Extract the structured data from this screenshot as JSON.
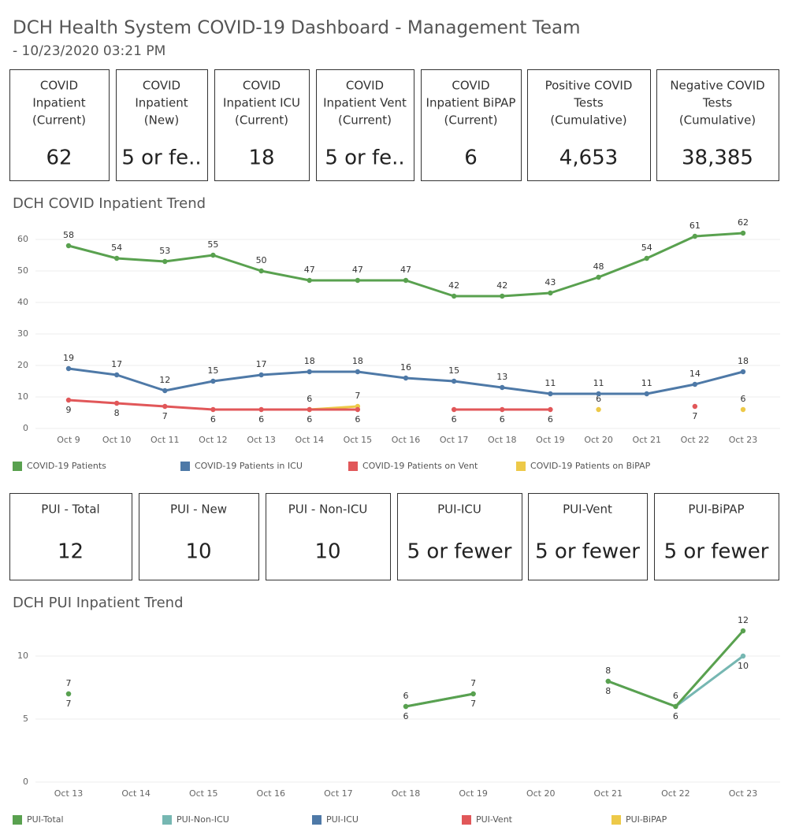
{
  "header": {
    "title": "DCH Health System COVID-19 Dashboard - Management Team",
    "subtitle": "- 10/23/2020 03:21 PM"
  },
  "kpis": [
    {
      "label": [
        "COVID",
        "Inpatient",
        "(Current)"
      ],
      "value": "62"
    },
    {
      "label": [
        "COVID",
        "Inpatient",
        "(New)"
      ],
      "value": "5 or fe.."
    },
    {
      "label": [
        "COVID",
        "Inpatient ICU",
        "(Current)"
      ],
      "value": "18"
    },
    {
      "label": [
        "COVID",
        "Inpatient Vent",
        "(Current)"
      ],
      "value": "5 or fe.."
    },
    {
      "label": [
        "COVID",
        "Inpatient BiPAP",
        "(Current)"
      ],
      "value": "6"
    },
    {
      "label": [
        "Positive COVID",
        "Tests",
        "(Cumulative)"
      ],
      "value": "4,653"
    },
    {
      "label": [
        "Negative COVID",
        "Tests",
        "(Cumulative)"
      ],
      "value": "38,385"
    }
  ],
  "pui_kpis": [
    {
      "label": [
        "PUI - Total"
      ],
      "value": "12"
    },
    {
      "label": [
        "PUI - New"
      ],
      "value": "10"
    },
    {
      "label": [
        "PUI - Non-ICU"
      ],
      "value": "10"
    },
    {
      "label": [
        "PUI-ICU"
      ],
      "value": "5 or fewer"
    },
    {
      "label": [
        "PUI-Vent"
      ],
      "value": "5 or fewer"
    },
    {
      "label": [
        "PUI-BiPAP"
      ],
      "value": "5 or fewer"
    }
  ],
  "chart_data": [
    {
      "type": "line",
      "title": "DCH COVID Inpatient Trend",
      "categories": [
        "Oct 9",
        "Oct 10",
        "Oct 11",
        "Oct 12",
        "Oct 13",
        "Oct 14",
        "Oct 15",
        "Oct 16",
        "Oct 17",
        "Oct 18",
        "Oct 19",
        "Oct 20",
        "Oct 21",
        "Oct 22",
        "Oct 23"
      ],
      "ylim": [
        0,
        63
      ],
      "yticks": [
        0,
        10,
        20,
        30,
        40,
        50,
        60
      ],
      "grid": true,
      "legend": "bottom",
      "series": [
        {
          "name": "COVID-19 Patients",
          "color": "#59a14f",
          "values": [
            58,
            54,
            53,
            55,
            50,
            47,
            47,
            47,
            42,
            42,
            43,
            48,
            54,
            61,
            62
          ]
        },
        {
          "name": "COVID-19 Patients in ICU",
          "color": "#4e79a7",
          "values": [
            19,
            17,
            12,
            15,
            17,
            18,
            18,
            16,
            15,
            13,
            11,
            11,
            11,
            14,
            18
          ]
        },
        {
          "name": "COVID-19 Patients on Vent",
          "color": "#e15759",
          "values": [
            9,
            8,
            7,
            6,
            6,
            6,
            6,
            null,
            6,
            6,
            6,
            null,
            null,
            7,
            null
          ]
        },
        {
          "name": "COVID-19 Patients on BiPAP",
          "color": "#edc948",
          "values": [
            null,
            null,
            null,
            null,
            null,
            6,
            7,
            null,
            null,
            null,
            null,
            6,
            null,
            null,
            6
          ]
        }
      ]
    },
    {
      "type": "line",
      "title": "DCH PUI Inpatient Trend",
      "categories": [
        "Oct 13",
        "Oct 14",
        "Oct 15",
        "Oct 16",
        "Oct 17",
        "Oct 18",
        "Oct 19",
        "Oct 20",
        "Oct 21",
        "Oct 22",
        "Oct 23"
      ],
      "ylim": [
        0,
        13
      ],
      "yticks": [
        0,
        5,
        10
      ],
      "grid": true,
      "legend": "bottom",
      "series": [
        {
          "name": "PUI-Total",
          "color": "#59a14f",
          "values": [
            7,
            null,
            null,
            null,
            null,
            6,
            7,
            null,
            8,
            6,
            12
          ]
        },
        {
          "name": "PUI-Non-ICU",
          "color": "#76b7b2",
          "values": [
            7,
            null,
            null,
            null,
            null,
            6,
            7,
            null,
            8,
            6,
            10
          ]
        },
        {
          "name": "PUI-ICU",
          "color": "#4e79a7",
          "values": [
            null,
            null,
            null,
            null,
            null,
            null,
            null,
            null,
            null,
            null,
            null
          ]
        },
        {
          "name": "PUI-Vent",
          "color": "#e15759",
          "values": [
            null,
            null,
            null,
            null,
            null,
            null,
            null,
            null,
            null,
            null,
            null
          ]
        },
        {
          "name": "PUI-BiPAP",
          "color": "#edc948",
          "values": [
            null,
            null,
            null,
            null,
            null,
            null,
            null,
            null,
            null,
            null,
            null
          ]
        }
      ]
    }
  ]
}
